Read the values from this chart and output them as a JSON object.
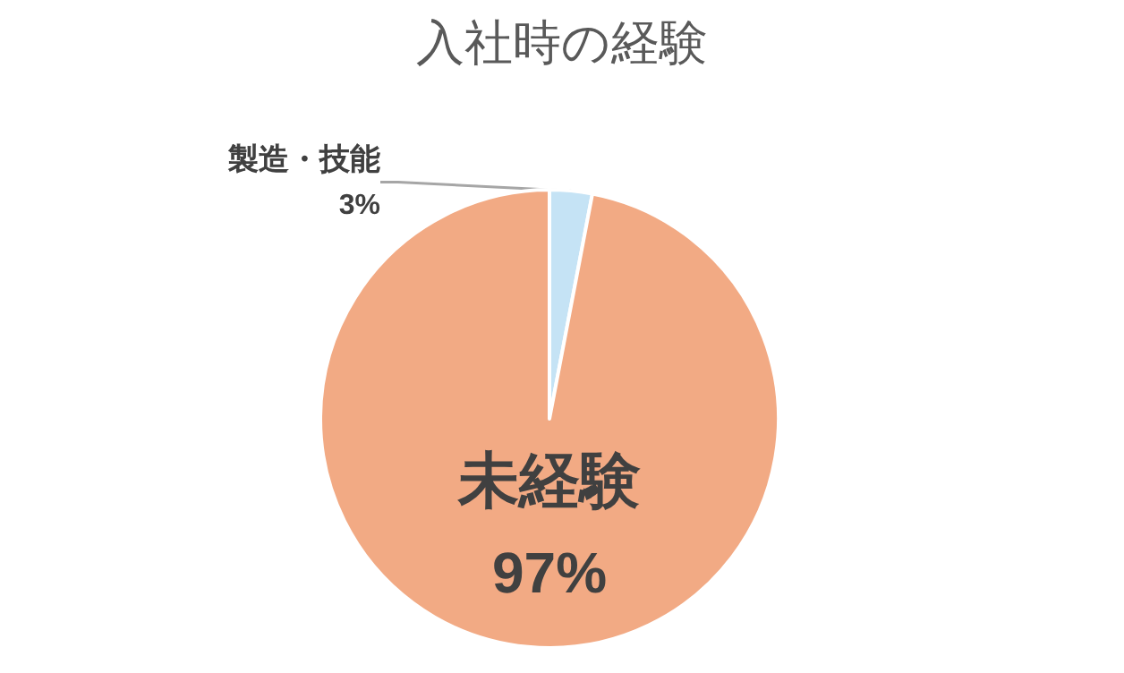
{
  "chart_data": {
    "type": "pie",
    "title": "入社時の経験",
    "categories": [
      "製造・技能",
      "未経験"
    ],
    "values": [
      3,
      97
    ],
    "colors": [
      "#c5e3f5",
      "#f2aa84"
    ],
    "value_labels": [
      "3%",
      "97%"
    ]
  }
}
